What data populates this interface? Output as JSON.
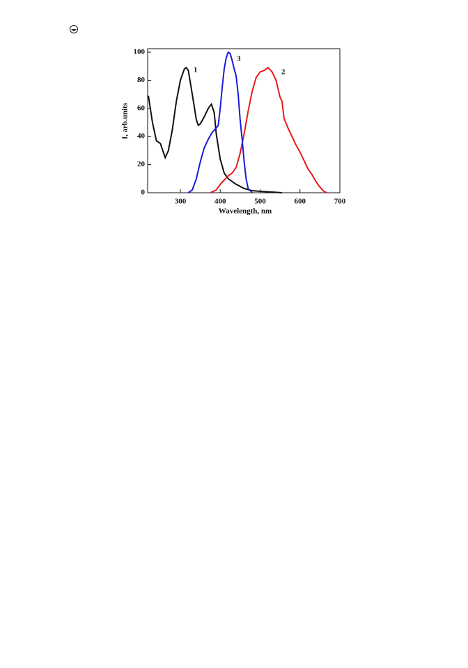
{
  "chart_data": {
    "type": "line",
    "x_label": "Wavelength, nm",
    "y_label": "I, arb.units",
    "xlim": [
      218,
      700
    ],
    "ylim": [
      0,
      100
    ],
    "xticks": [
      300,
      400,
      500,
      600,
      700
    ],
    "yticks": [
      0,
      20,
      40,
      60,
      80,
      100
    ],
    "annotations": [
      "1",
      "2",
      "3"
    ],
    "series": [
      {
        "name": "1",
        "color": "#111111",
        "x": [
          220,
          230,
          240,
          250,
          262,
          270,
          280,
          290,
          300,
          310,
          315,
          320,
          330,
          340,
          345,
          350,
          360,
          370,
          378,
          385,
          390,
          400,
          410,
          420,
          440,
          460,
          480,
          500,
          530,
          555
        ],
        "values": [
          69,
          50,
          37,
          35,
          25,
          30,
          45,
          65,
          80,
          88,
          89,
          87,
          70,
          52,
          48,
          49,
          54,
          60,
          63,
          57,
          42,
          24,
          14,
          10,
          6,
          3,
          1.5,
          1,
          0.5,
          0
        ]
      },
      {
        "name": "2",
        "color": "#e8191b",
        "x": [
          375,
          390,
          400,
          410,
          420,
          430,
          440,
          450,
          460,
          470,
          480,
          490,
          500,
          510,
          520,
          530,
          540,
          550,
          555,
          560,
          570,
          580,
          590,
          600,
          610,
          620,
          630,
          640,
          650,
          660,
          668
        ],
        "values": [
          0,
          2,
          6,
          9,
          12,
          14,
          18,
          28,
          42,
          58,
          72,
          82,
          86,
          87,
          89,
          86,
          80,
          68,
          65,
          53,
          46,
          40,
          34,
          29,
          23,
          17,
          13,
          8,
          4,
          1,
          0
        ]
      },
      {
        "name": "3",
        "color": "#1a1adb",
        "x": [
          320,
          330,
          340,
          350,
          360,
          370,
          380,
          390,
          395,
          400,
          405,
          410,
          415,
          420,
          425,
          430,
          435,
          440,
          445,
          450,
          455,
          460,
          465,
          470,
          480
        ],
        "values": [
          0,
          2,
          10,
          22,
          32,
          38,
          43,
          46,
          48,
          60,
          75,
          88,
          96,
          100,
          99,
          94,
          88,
          83,
          70,
          52,
          38,
          22,
          10,
          3,
          0
        ]
      }
    ]
  }
}
